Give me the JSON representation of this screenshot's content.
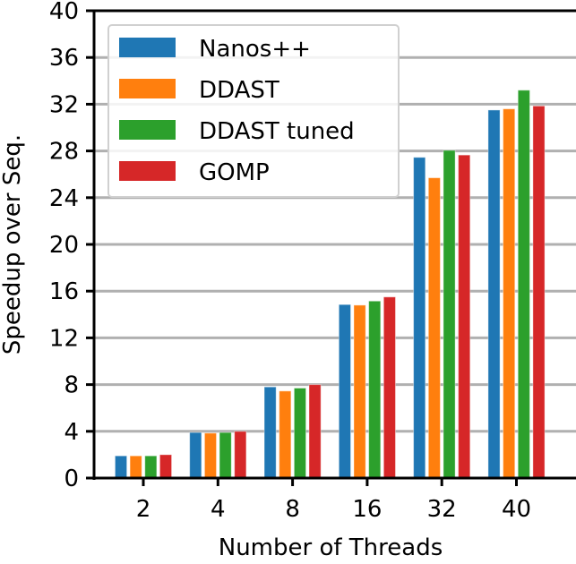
{
  "chart_data": {
    "type": "bar",
    "title": "",
    "xlabel": "Number of Threads",
    "ylabel": "Speedup over Seq.",
    "categories": [
      "2",
      "4",
      "8",
      "16",
      "32",
      "40"
    ],
    "ylim": [
      0,
      40
    ],
    "yticks": [
      "0",
      "4",
      "8",
      "12",
      "16",
      "20",
      "24",
      "28",
      "32",
      "36",
      "40"
    ],
    "grid": "horizontal",
    "legend_position": "top-left",
    "series": [
      {
        "name": "Nanos++",
        "color": "#1f77b4",
        "values": [
          1.9,
          3.9,
          7.8,
          14.85,
          27.45,
          31.5
        ]
      },
      {
        "name": "DDAST",
        "color": "#ff7f0e",
        "values": [
          1.9,
          3.85,
          7.45,
          14.8,
          25.7,
          31.6
        ]
      },
      {
        "name": "DDAST tuned",
        "color": "#2ca02c",
        "values": [
          1.9,
          3.9,
          7.7,
          15.15,
          28.05,
          33.2
        ]
      },
      {
        "name": "GOMP",
        "color": "#d62728",
        "values": [
          2.0,
          4.0,
          8.0,
          15.5,
          27.65,
          31.85
        ]
      }
    ]
  }
}
